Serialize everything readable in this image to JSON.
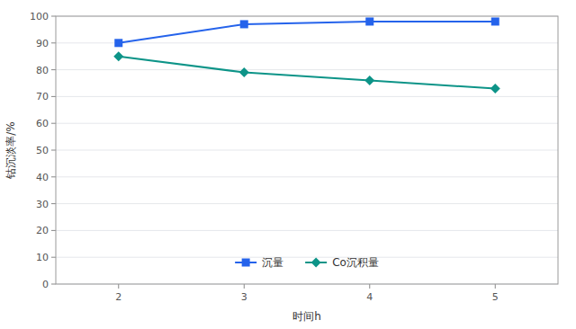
{
  "chart_data": {
    "type": "line",
    "x": [
      2,
      3,
      4,
      5
    ],
    "xlabel": "时间h",
    "ylabel": "钴沉淡率/%",
    "xlim": [
      1.5,
      5.5
    ],
    "xticks": [
      2,
      3,
      4,
      5
    ],
    "ylim": [
      0,
      100
    ],
    "yticks": [
      0,
      10,
      20,
      30,
      40,
      50,
      60,
      70,
      80,
      90,
      100
    ],
    "grid": true,
    "legend": "bottom",
    "series": [
      {
        "name": "沉量",
        "color": "#2563eb",
        "marker": "square",
        "values": [
          90,
          97,
          98,
          98
        ]
      },
      {
        "name": "Co沉积量",
        "color": "#0d9488",
        "marker": "diamond",
        "values": [
          85,
          79,
          76,
          73
        ]
      }
    ]
  }
}
